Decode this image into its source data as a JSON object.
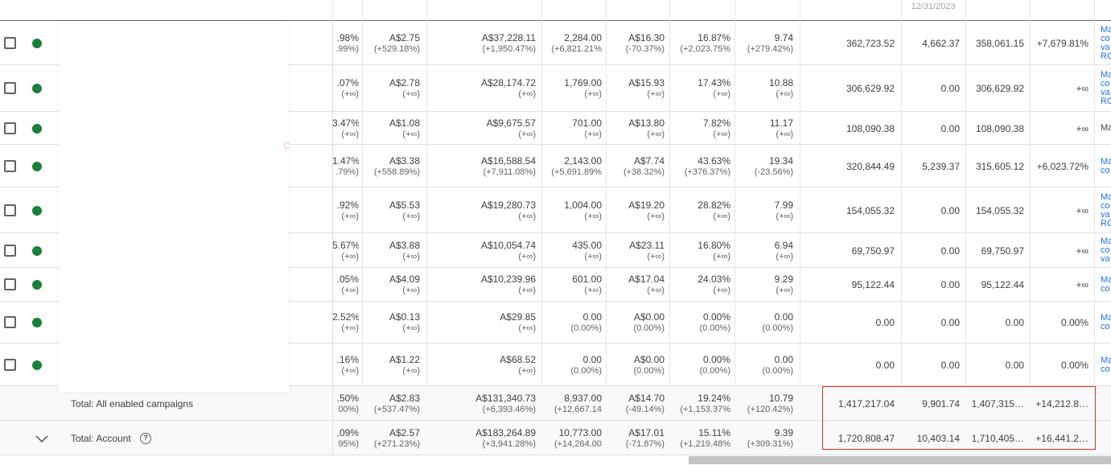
{
  "header": {
    "partial_date": "12/31/2023"
  },
  "rows": [
    {
      "c1": ".98%",
      "c1s": ".99%)",
      "c2": "A$2.75",
      "c2s": "(+529.18%)",
      "c3": "A$37,228.11",
      "c3s": "(+1,950.47%)",
      "c4": "2,284.00",
      "c4s": "(+6,821.21%",
      "c5": "A$16.30",
      "c5s": "(-70.37%)",
      "c6": "16.87%",
      "c6s": "(+2,023.75%",
      "c7": "9.74",
      "c7s": "(+279.42%)",
      "v1": "362,723.52",
      "v2": "4,662.37",
      "v3": "358,061.15",
      "v4": "+7,679.81%",
      "link": [
        "Ma",
        "co",
        "va",
        "RO"
      ]
    },
    {
      "c1": ".07%",
      "c1s": "(+∞)",
      "c2": "A$2.78",
      "c2s": "(+∞)",
      "c3": "A$28,174.72",
      "c3s": "(+∞)",
      "c4": "1,769.00",
      "c4s": "(+∞)",
      "c5": "A$15.93",
      "c5s": "(+∞)",
      "c6": "17.43%",
      "c6s": "(+∞)",
      "c7": "10.88",
      "c7s": "(+∞)",
      "v1": "306,629.92",
      "v2": "0.00",
      "v3": "306,629.92",
      "v4": "+∞",
      "link": [
        "Ma",
        "co",
        "va",
        "RO"
      ]
    },
    {
      "c1": "3.47%",
      "c1s": "(+∞)",
      "c2": "A$1.08",
      "c2s": "(+∞)",
      "c3": "A$9,675.57",
      "c3s": "(+∞)",
      "c4": "701.00",
      "c4s": "(+∞)",
      "c5": "A$13.80",
      "c5s": "(+∞)",
      "c6": "7.82%",
      "c6s": "(+∞)",
      "c7": "11.17",
      "c7s": "(+∞)",
      "v1": "108,090.38",
      "v2": "0.00",
      "v3": "108,090.38",
      "v4": "+∞",
      "link": [
        "Ma"
      ]
    },
    {
      "c1": "1.47%",
      "c1s": ".79%)",
      "c2": "A$3.38",
      "c2s": "(+558.89%)",
      "c3": "A$16,588.54",
      "c3s": "(+7,911.08%)",
      "c4": "2,143.00",
      "c4s": "(+5,691.89%",
      "c5": "A$7.74",
      "c5s": "(+38.32%)",
      "c6": "43.63%",
      "c6s": "(+376.37%)",
      "c7": "19.34",
      "c7s": "(-23.56%)",
      "v1": "320,844.49",
      "v2": "5,239.37",
      "v3": "315,605.12",
      "v4": "+6,023.72%",
      "link": [
        "Ma",
        "co"
      ]
    },
    {
      "c1": ".92%",
      "c1s": "(+∞)",
      "c2": "A$5.53",
      "c2s": "(+∞)",
      "c3": "A$19,280.73",
      "c3s": "(+∞)",
      "c4": "1,004.00",
      "c4s": "(+∞)",
      "c5": "A$19.20",
      "c5s": "(+∞)",
      "c6": "28.82%",
      "c6s": "(+∞)",
      "c7": "7.99",
      "c7s": "(+∞)",
      "v1": "154,055.32",
      "v2": "0.00",
      "v3": "154,055.32",
      "v4": "+∞",
      "link": [
        "Ma",
        "co",
        "va",
        "RO"
      ]
    },
    {
      "c1": "5.67%",
      "c1s": "(+∞)",
      "c2": "A$3.88",
      "c2s": "(+∞)",
      "c3": "A$10,054.74",
      "c3s": "(+∞)",
      "c4": "435.00",
      "c4s": "(+∞)",
      "c5": "A$23.11",
      "c5s": "(+∞)",
      "c6": "16.80%",
      "c6s": "(+∞)",
      "c7": "6.94",
      "c7s": "(+∞)",
      "v1": "69,750.97",
      "v2": "0.00",
      "v3": "69,750.97",
      "v4": "+∞",
      "link": [
        "Ma",
        "co",
        "va"
      ]
    },
    {
      "c1": ".05%",
      "c1s": "(+∞)",
      "c2": "A$4.09",
      "c2s": "(+∞)",
      "c3": "A$10,239.96",
      "c3s": "(+∞)",
      "c4": "601.00",
      "c4s": "(+∞)",
      "c5": "A$17.04",
      "c5s": "(+∞)",
      "c6": "24.03%",
      "c6s": "(+∞)",
      "c7": "9.29",
      "c7s": "(+∞)",
      "v1": "95,122.44",
      "v2": "0.00",
      "v3": "95,122.44",
      "v4": "+∞",
      "link": [
        "Ma",
        "co"
      ]
    },
    {
      "c1": "2.52%",
      "c1s": "(+∞)",
      "c2": "A$0.13",
      "c2s": "(+∞)",
      "c3": "A$29.85",
      "c3s": "(+∞)",
      "c4": "0.00",
      "c4s": "(0.00%)",
      "c5": "A$0.00",
      "c5s": "(0.00%)",
      "c6": "0.00%",
      "c6s": "(0.00%)",
      "c7": "0.00",
      "c7s": "(0.00%)",
      "v1": "0.00",
      "v2": "0.00",
      "v3": "0.00",
      "v4": "0.00%",
      "link": [
        "Ma",
        "co"
      ]
    },
    {
      "c1": ".16%",
      "c1s": "(+∞)",
      "c2": "A$1.22",
      "c2s": "(+∞)",
      "c3": "A$68.52",
      "c3s": "(+∞)",
      "c4": "0.00",
      "c4s": "(0.00%)",
      "c5": "A$0.00",
      "c5s": "(0.00%)",
      "c6": "0.00%",
      "c6s": "(0.00%)",
      "c7": "0.00",
      "c7s": "(0.00%)",
      "v1": "0.00",
      "v2": "0.00",
      "v3": "0.00",
      "v4": "0.00%",
      "link": [
        "Ma",
        "co"
      ]
    }
  ],
  "totals": [
    {
      "label": "Total: All enabled campaigns",
      "c1": ".50%",
      "c1s": "00%)",
      "c2": "A$2.83",
      "c2s": "(+537.47%)",
      "c3": "A$131,340.73",
      "c3s": "(+6,393.46%)",
      "c4": "8,937.00",
      "c4s": "(+12,667.14",
      "c5": "A$14.70",
      "c5s": "(-49.14%)",
      "c6": "19.24%",
      "c6s": "(+1,153.37%",
      "c7": "10.79",
      "c7s": "(+120.42%)",
      "v1": "1,417,217.04",
      "v2": "9,901.74",
      "v3": "1,407,315…",
      "v4": "+14,212.8…"
    },
    {
      "label": "Total: Account",
      "c1": ".09%",
      "c1s": "95%)",
      "c2": "A$2.57",
      "c2s": "(+271.23%)",
      "c3": "A$183,264.89",
      "c3s": "(+3,941.28%)",
      "c4": "10,773.00",
      "c4s": "(+14,264.00",
      "c5": "A$17.01",
      "c5s": "(-71.87%)",
      "c6": "15.11%",
      "c6s": "(+1,219.48%",
      "c7": "9.39",
      "c7s": "(+309.31%)",
      "v1": "1,720,808.47",
      "v2": "10,403.14",
      "v3": "1,710,405…",
      "v4": "+16,441.2…"
    }
  ],
  "icons": {
    "help": "?",
    "chevron": "chevron-down-icon"
  },
  "colors": {
    "status_enabled": "#188038",
    "highlight": "#d93025",
    "link": "#1a73e8"
  }
}
